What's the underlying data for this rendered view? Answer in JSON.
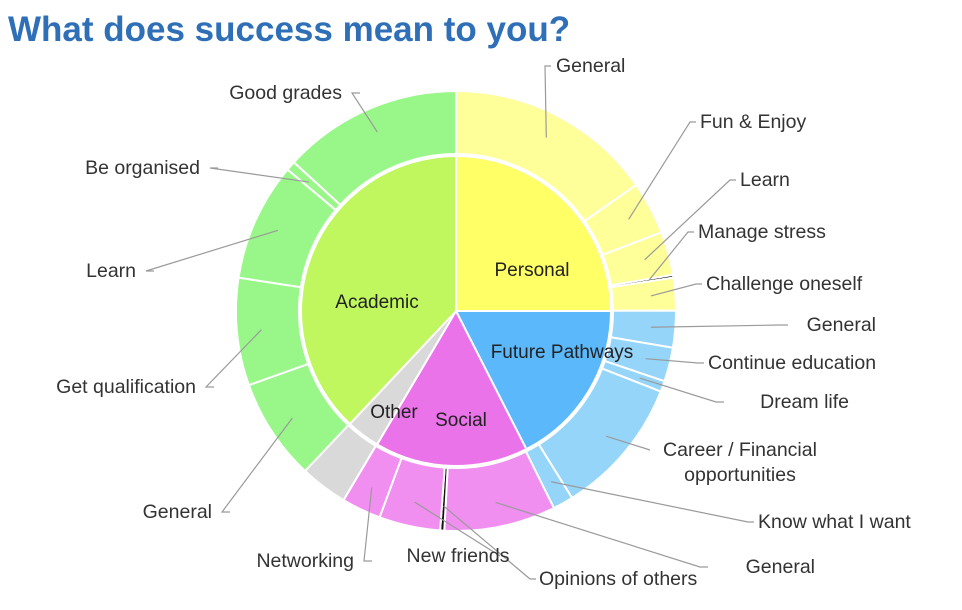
{
  "title": "What does success mean to you?",
  "chart_data": {
    "type": "sunburst",
    "title": "What does success mean to you?",
    "inner": [
      {
        "name": "Personal",
        "value": 25,
        "color": "#ffff66"
      },
      {
        "name": "Future Pathways",
        "value": 17.5,
        "color": "#5bb8fb"
      },
      {
        "name": "Social",
        "value": 16,
        "color": "#ea73ea"
      },
      {
        "name": "Other",
        "value": 3.5,
        "color": "#d9d9d9"
      },
      {
        "name": "Academic",
        "value": 38,
        "color": "#c0f65e"
      }
    ],
    "outer": [
      {
        "name": "General",
        "parent": "Personal",
        "value": 15.3,
        "color": "#ffff99"
      },
      {
        "name": "Fun & Enjoy",
        "parent": "Personal",
        "value": 3.9,
        "color": "#ffff99"
      },
      {
        "name": "Learn",
        "parent": "Personal",
        "value": 3.2,
        "color": "#ffff99"
      },
      {
        "name": "Manage stress",
        "parent": "Personal",
        "value": 0.2,
        "color": "#111111"
      },
      {
        "name": "Challenge oneself",
        "parent": "Personal",
        "value": 2.4,
        "color": "#ffff99"
      },
      {
        "name": "General",
        "parent": "Future Pathways",
        "value": 2.7,
        "color": "#95d5fa"
      },
      {
        "name": "Continue education",
        "parent": "Future Pathways",
        "value": 2.5,
        "color": "#95d5fa"
      },
      {
        "name": "Dream life",
        "parent": "Future Pathways",
        "value": 0.8,
        "color": "#95d5fa"
      },
      {
        "name": "Career / Financial opportunities",
        "parent": "Future Pathways",
        "value": 10.2,
        "color": "#95d5fa"
      },
      {
        "name": "Know what I want",
        "parent": "Future Pathways",
        "value": 1.5,
        "color": "#95d5fa"
      },
      {
        "name": "General",
        "parent": "Social",
        "value": 8.2,
        "color": "#f08ff0"
      },
      {
        "name": "Opinions of others",
        "parent": "Social",
        "value": 0.3,
        "color": "#111111"
      },
      {
        "name": "New friends",
        "parent": "Social",
        "value": 4.5,
        "color": "#f08ff0"
      },
      {
        "name": "Networking",
        "parent": "Social",
        "value": 2.9,
        "color": "#f08ff0"
      },
      {
        "name": "Other",
        "parent": "Other",
        "value": 3.5,
        "color": "#d9d9d9"
      },
      {
        "name": "General",
        "parent": "Academic",
        "value": 7.5,
        "color": "#99f78a"
      },
      {
        "name": "Get qualification",
        "parent": "Academic",
        "value": 7.9,
        "color": "#99f78a"
      },
      {
        "name": "Learn",
        "parent": "Academic",
        "value": 8.7,
        "color": "#99f78a"
      },
      {
        "name": "Be organised",
        "parent": "Academic",
        "value": 0.7,
        "color": "#99f78a"
      },
      {
        "name": "Good grades",
        "parent": "Academic",
        "value": 13.2,
        "color": "#99f78a"
      }
    ]
  }
}
